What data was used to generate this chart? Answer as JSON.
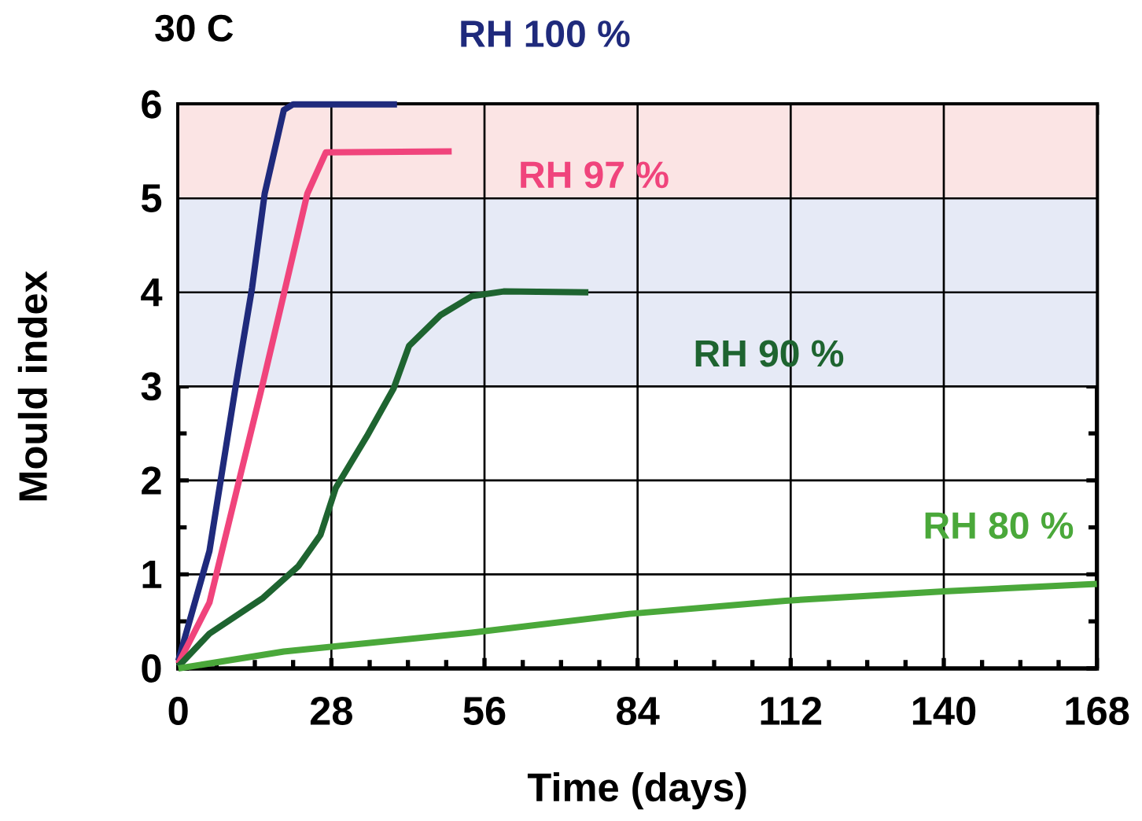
{
  "chart_data": {
    "type": "line",
    "title": "30 C",
    "xlabel": "Time (days)",
    "ylabel": "Mould index",
    "xlim": [
      0,
      168
    ],
    "xticks": [
      0,
      28,
      56,
      84,
      112,
      140,
      168
    ],
    "ylim": [
      0,
      6
    ],
    "yticks": [
      0,
      1,
      2,
      3,
      4,
      5,
      6
    ],
    "grid": true,
    "line_style": "solid",
    "marker": "none",
    "bands": [
      {
        "axis": "y",
        "from": 5,
        "to": 6,
        "color": "#fbe4e4"
      },
      {
        "axis": "y",
        "from": 3,
        "to": 5,
        "color": "#e6eaf6"
      }
    ],
    "series": [
      {
        "name": "RH 100 %",
        "color": "#1f2a7c",
        "x": [
          0,
          5.7,
          10.6,
          13.5,
          15.8,
          19.3,
          21,
          40
        ],
        "values": [
          0.08,
          1.25,
          3.04,
          4.05,
          5.05,
          5.94,
          6,
          6
        ]
      },
      {
        "name": "RH 97 %",
        "color": "#f0447c",
        "x": [
          0,
          5.7,
          11.5,
          15.5,
          19.3,
          23.6,
          27,
          50
        ],
        "values": [
          0.05,
          0.7,
          2.09,
          3.04,
          3.98,
          5.05,
          5.49,
          5.5
        ]
      },
      {
        "name": "RH 90 %",
        "color": "#1e6430",
        "x": [
          0,
          5.7,
          15.5,
          22,
          26,
          28.8,
          34.5,
          39.4,
          42.2,
          48,
          53.7,
          59.5,
          75
        ],
        "values": [
          0.02,
          0.37,
          0.75,
          1.09,
          1.42,
          1.92,
          2.47,
          2.98,
          3.43,
          3.76,
          3.96,
          4.01,
          4
        ]
      },
      {
        "name": "RH 80 %",
        "color": "#4aa83a",
        "x": [
          0,
          19.3,
          53.7,
          82.5,
          111,
          140,
          168
        ],
        "values": [
          0,
          0.18,
          0.38,
          0.58,
          0.72,
          0.82,
          0.9
        ]
      }
    ]
  }
}
